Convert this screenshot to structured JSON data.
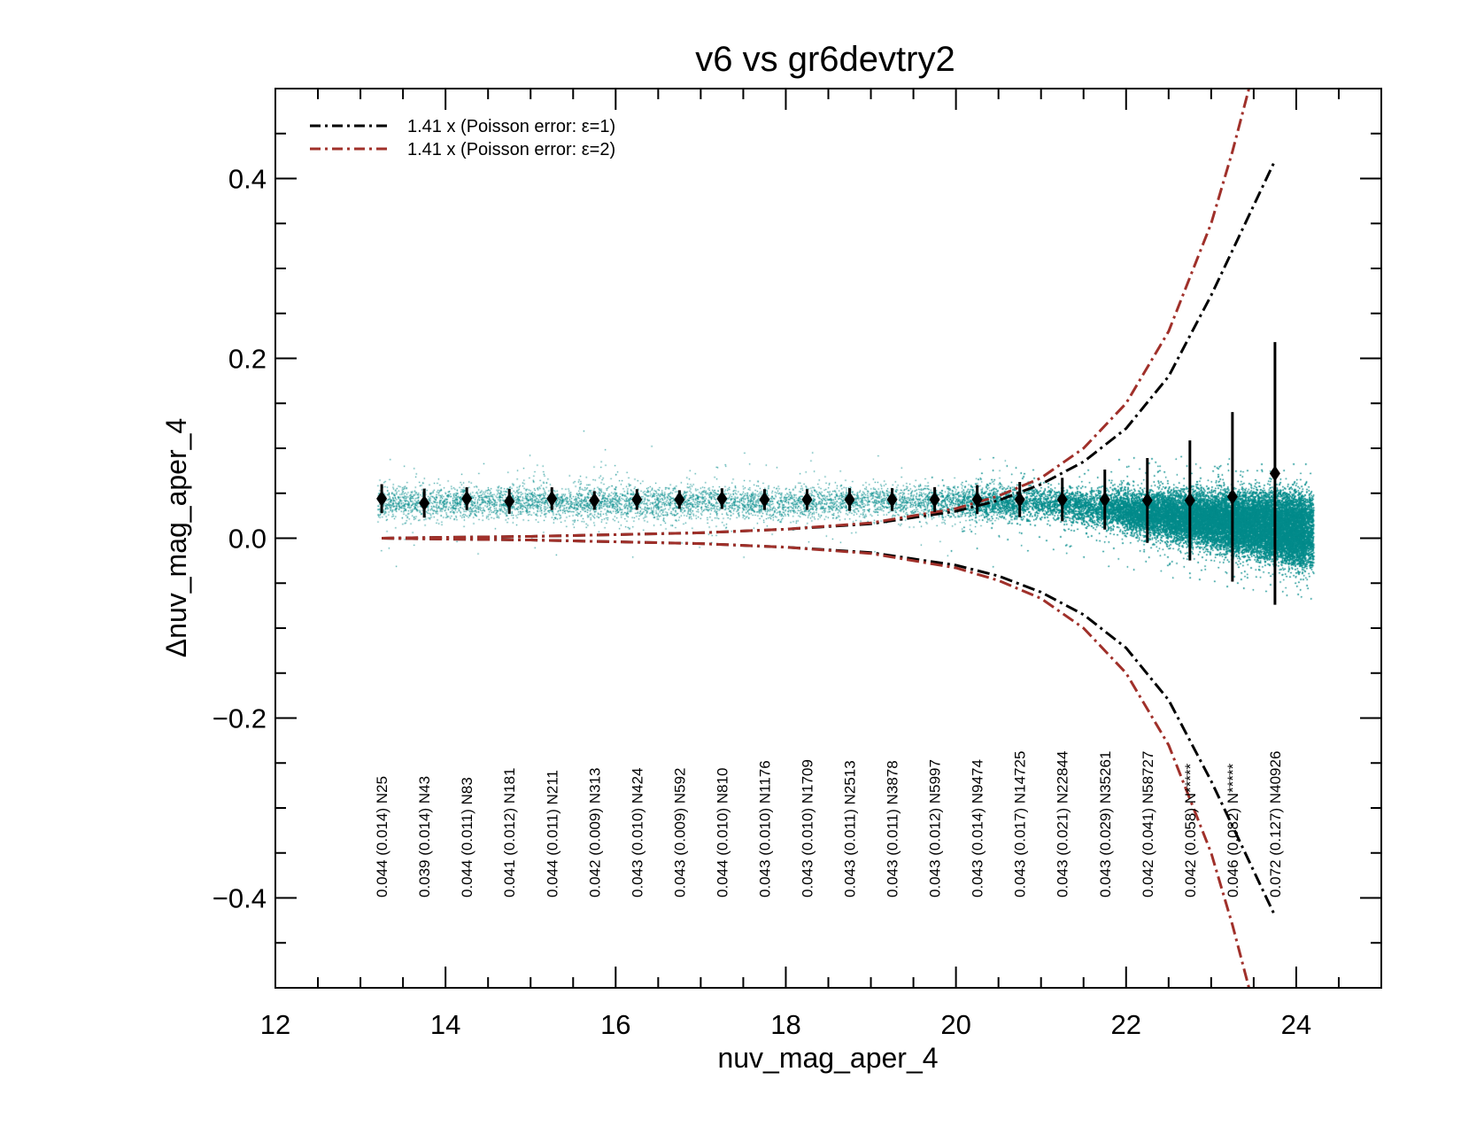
{
  "chart_data": {
    "type": "scatter",
    "title": "v6 vs gr6devtry2",
    "xlabel": "nuv_mag_aper_4",
    "ylabel": "Δnuv_mag_aper_4",
    "xlim": [
      12,
      25
    ],
    "ylim": [
      -0.5,
      0.5
    ],
    "x_ticks": [
      12,
      14,
      16,
      18,
      20,
      22,
      24
    ],
    "x_tick_labels": [
      "12",
      "14",
      "16",
      "18",
      "20",
      "22",
      "24"
    ],
    "y_ticks": [
      -0.4,
      -0.2,
      0.0,
      0.2,
      0.4
    ],
    "y_tick_labels": [
      "−0.4",
      "−0.2",
      "0.0",
      "0.2",
      "0.4"
    ],
    "grid": false,
    "legend_position": "top-left",
    "scatter_color": "#008b8b",
    "series": [
      {
        "name": "1.41 x (Poisson error: ε=1)",
        "style": "dash-dot",
        "color": "#000000",
        "x": [
          13.25,
          14,
          15,
          16,
          17,
          18,
          19,
          20,
          20.5,
          21,
          21.5,
          22,
          22.5,
          23,
          23.5,
          23.75
        ],
        "y": [
          0.0,
          0.001,
          0.002,
          0.004,
          0.006,
          0.01,
          0.016,
          0.03,
          0.042,
          0.06,
          0.085,
          0.122,
          0.18,
          0.27,
          0.37,
          0.42
        ]
      },
      {
        "name": "1.41 x (Poisson error: ε=2)",
        "style": "dash-dot",
        "color": "#a0302a",
        "x": [
          13.25,
          14,
          15,
          16,
          17,
          18,
          19,
          20,
          20.5,
          21,
          21.5,
          22,
          22.5,
          23,
          23.25,
          23.5,
          23.65
        ],
        "y": [
          0.0,
          0.001,
          0.002,
          0.004,
          0.006,
          0.01,
          0.017,
          0.033,
          0.047,
          0.067,
          0.1,
          0.15,
          0.23,
          0.35,
          0.43,
          0.52,
          0.6
        ]
      }
    ],
    "binned_points": {
      "x": [
        13.25,
        13.75,
        14.25,
        14.75,
        15.25,
        15.75,
        16.25,
        16.75,
        17.25,
        17.75,
        18.25,
        18.75,
        19.25,
        19.75,
        20.25,
        20.75,
        21.25,
        21.75,
        22.25,
        22.75,
        23.25,
        23.75
      ],
      "median": [
        0.044,
        0.039,
        0.044,
        0.041,
        0.044,
        0.042,
        0.043,
        0.043,
        0.044,
        0.043,
        0.043,
        0.043,
        0.043,
        0.043,
        0.043,
        0.043,
        0.043,
        0.043,
        0.042,
        0.042,
        0.046,
        0.072
      ],
      "sigma": [
        0.014,
        0.014,
        0.011,
        0.012,
        0.011,
        0.009,
        0.01,
        0.009,
        0.01,
        0.01,
        0.01,
        0.011,
        0.011,
        0.012,
        0.014,
        0.017,
        0.021,
        0.029,
        0.041,
        0.058,
        0.082,
        0.127
      ]
    },
    "annotations": [
      "0.044 (0.014)  N25",
      "0.039 (0.014)  N43",
      "0.044 (0.011)  N83",
      "0.041 (0.012)  N181",
      "0.044 (0.011)  N211",
      "0.042 (0.009)  N313",
      "0.043 (0.010)  N424",
      "0.043 (0.009)  N592",
      "0.044 (0.010)  N810",
      "0.043 (0.010)  N1176",
      "0.043 (0.010)  N1709",
      "0.043 (0.011)  N2513",
      "0.043 (0.011)  N3878",
      "0.043 (0.012)  N5997",
      "0.043 (0.014)  N9474",
      "0.043 (0.017)  N14725",
      "0.043 (0.021)  N22844",
      "0.043 (0.029)  N35261",
      "0.042 (0.041)  N58727",
      "0.042 (0.058)  N*****",
      "0.046 (0.082)  N*****",
      "0.072 (0.127)  N40926"
    ]
  }
}
